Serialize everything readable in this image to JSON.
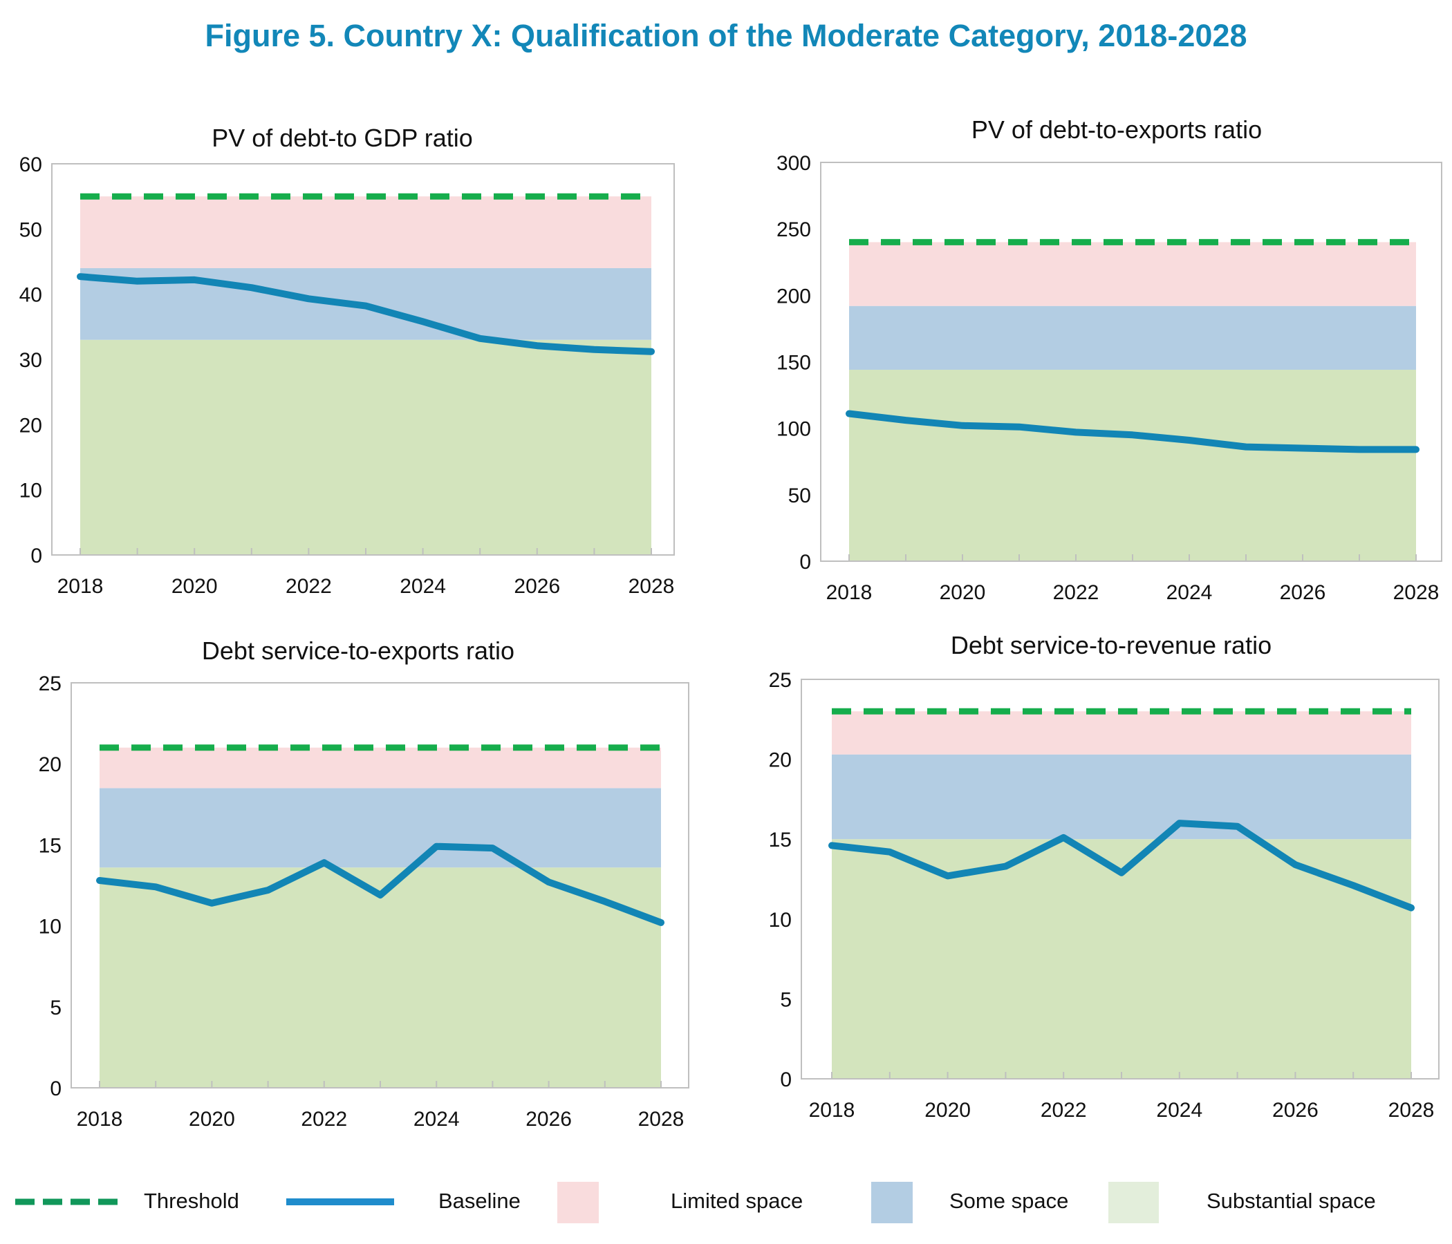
{
  "title": "Figure 5. Country X: Qualification of the Moderate Category, 2018-2028",
  "colors": {
    "threshold": "#16ad4c",
    "baseline": "#1285b5",
    "limited": "#f9dcdd",
    "some": "#b3cde3",
    "substantial": "#d3e4bd",
    "legend_threshold": "#11975a",
    "legend_baseline": "#1f8ccc",
    "legend_limited": "#f9dcdd",
    "legend_some": "#b3cde3",
    "legend_substantial": "#e3eedb"
  },
  "legend": {
    "threshold": "Threshold",
    "baseline": "Baseline",
    "limited": "Limited space",
    "some": "Some space",
    "substantial": "Substantial space"
  },
  "chart_data": [
    {
      "type": "line",
      "title": "PV of debt-to GDP ratio",
      "x": [
        2018,
        2019,
        2020,
        2021,
        2022,
        2023,
        2024,
        2025,
        2026,
        2027,
        2028
      ],
      "x_tick_labels": [
        "2018",
        "2020",
        "2022",
        "2024",
        "2026",
        "2028"
      ],
      "ylim": [
        0,
        60
      ],
      "y_ticks": [
        0,
        10,
        20,
        30,
        40,
        50,
        60
      ],
      "bands": {
        "substantial": [
          0,
          33
        ],
        "some": [
          33,
          44
        ],
        "limited": [
          44,
          55
        ]
      },
      "series": [
        {
          "name": "Threshold",
          "values": [
            55,
            55,
            55,
            55,
            55,
            55,
            55,
            55,
            55,
            55,
            55
          ]
        },
        {
          "name": "Baseline",
          "values": [
            42.7,
            42.0,
            42.2,
            41.0,
            39.3,
            38.2,
            35.8,
            33.2,
            32.1,
            31.5,
            31.2
          ]
        }
      ]
    },
    {
      "type": "line",
      "title": "PV of debt-to-exports ratio",
      "x": [
        2018,
        2019,
        2020,
        2021,
        2022,
        2023,
        2024,
        2025,
        2026,
        2027,
        2028
      ],
      "x_tick_labels": [
        "2018",
        "2020",
        "2022",
        "2024",
        "2026",
        "2028"
      ],
      "ylim": [
        0,
        300
      ],
      "y_ticks": [
        0,
        50,
        100,
        150,
        200,
        250,
        300
      ],
      "bands": {
        "substantial": [
          0,
          144
        ],
        "some": [
          144,
          192
        ],
        "limited": [
          192,
          240
        ]
      },
      "series": [
        {
          "name": "Threshold",
          "values": [
            240,
            240,
            240,
            240,
            240,
            240,
            240,
            240,
            240,
            240,
            240
          ]
        },
        {
          "name": "Baseline",
          "values": [
            111,
            106,
            102,
            101,
            97,
            95,
            91,
            86,
            85,
            84,
            84
          ]
        }
      ]
    },
    {
      "type": "line",
      "title": "Debt service-to-exports ratio",
      "x": [
        2018,
        2019,
        2020,
        2021,
        2022,
        2023,
        2024,
        2025,
        2026,
        2027,
        2028
      ],
      "x_tick_labels": [
        "2018",
        "2020",
        "2022",
        "2024",
        "2026",
        "2028"
      ],
      "ylim": [
        0,
        25
      ],
      "y_ticks": [
        0,
        5,
        10,
        15,
        20,
        25
      ],
      "bands": {
        "substantial": [
          0,
          13.6
        ],
        "some": [
          13.6,
          18.5
        ],
        "limited": [
          18.5,
          21
        ]
      },
      "series": [
        {
          "name": "Threshold",
          "values": [
            21,
            21,
            21,
            21,
            21,
            21,
            21,
            21,
            21,
            21,
            21
          ]
        },
        {
          "name": "Baseline",
          "values": [
            12.8,
            12.4,
            11.4,
            12.2,
            13.9,
            11.9,
            14.9,
            14.8,
            12.7,
            11.5,
            10.2
          ]
        }
      ]
    },
    {
      "type": "line",
      "title": "Debt service-to-revenue ratio",
      "x": [
        2018,
        2019,
        2020,
        2021,
        2022,
        2023,
        2024,
        2025,
        2026,
        2027,
        2028
      ],
      "x_tick_labels": [
        "2018",
        "2020",
        "2022",
        "2024",
        "2026",
        "2028"
      ],
      "ylim": [
        0,
        25
      ],
      "y_ticks": [
        0,
        5,
        10,
        15,
        20,
        25
      ],
      "bands": {
        "substantial": [
          0,
          15
        ],
        "some": [
          15,
          20.3
        ],
        "limited": [
          20.3,
          23
        ]
      },
      "series": [
        {
          "name": "Threshold",
          "values": [
            23,
            23,
            23,
            23,
            23,
            23,
            23,
            23,
            23,
            23,
            23
          ]
        },
        {
          "name": "Baseline",
          "values": [
            14.6,
            14.2,
            12.7,
            13.3,
            15.1,
            12.9,
            16.0,
            15.8,
            13.4,
            12.1,
            10.7
          ]
        }
      ]
    }
  ]
}
